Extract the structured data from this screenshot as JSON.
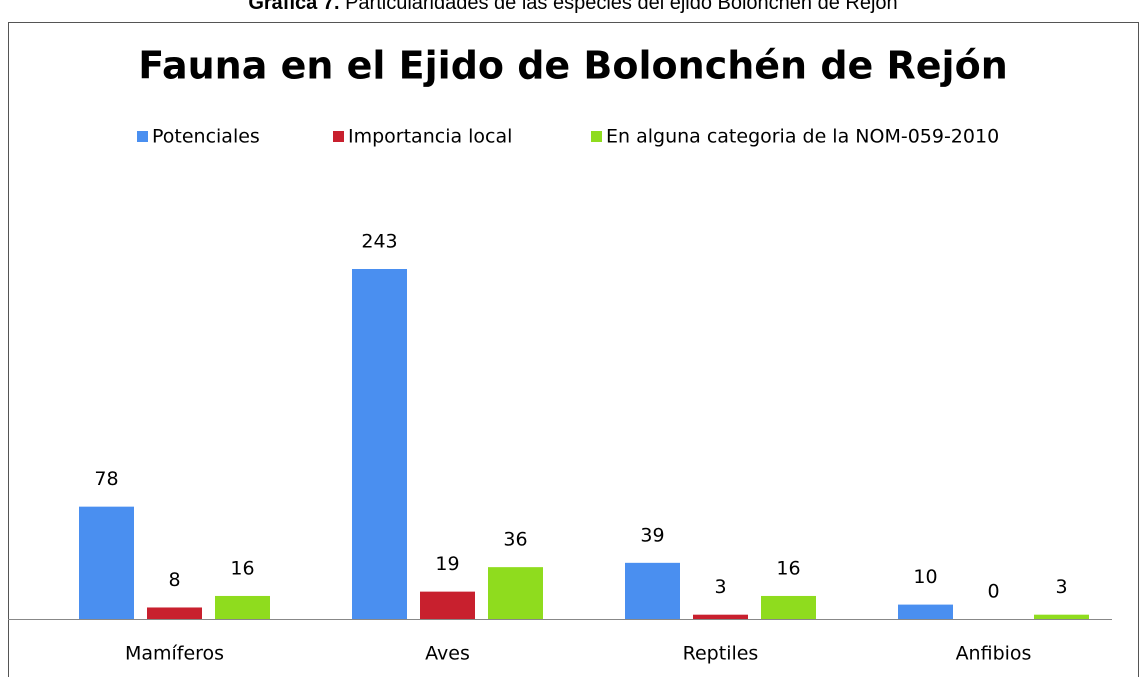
{
  "caption_label": "Gráfica 7.",
  "caption_text": "Particularidades de las especies del ejido Bolonchén de Rejón",
  "chart_data": {
    "type": "bar",
    "title": "Fauna en el Ejido de Bolonchén de Rejón",
    "categories": [
      "Mamíferos",
      "Aves",
      "Reptiles",
      "Anfibios"
    ],
    "series": [
      {
        "name": "Potenciales",
        "color": "#4a8ff0",
        "values": [
          78,
          243,
          39,
          10
        ]
      },
      {
        "name": "Importancia local",
        "color": "#c8202e",
        "values": [
          8,
          19,
          3,
          0
        ]
      },
      {
        "name": "En alguna categoria de la NOM-059-2010",
        "color": "#8fdc1e",
        "values": [
          16,
          36,
          16,
          3
        ]
      }
    ],
    "legend": "top"
  }
}
